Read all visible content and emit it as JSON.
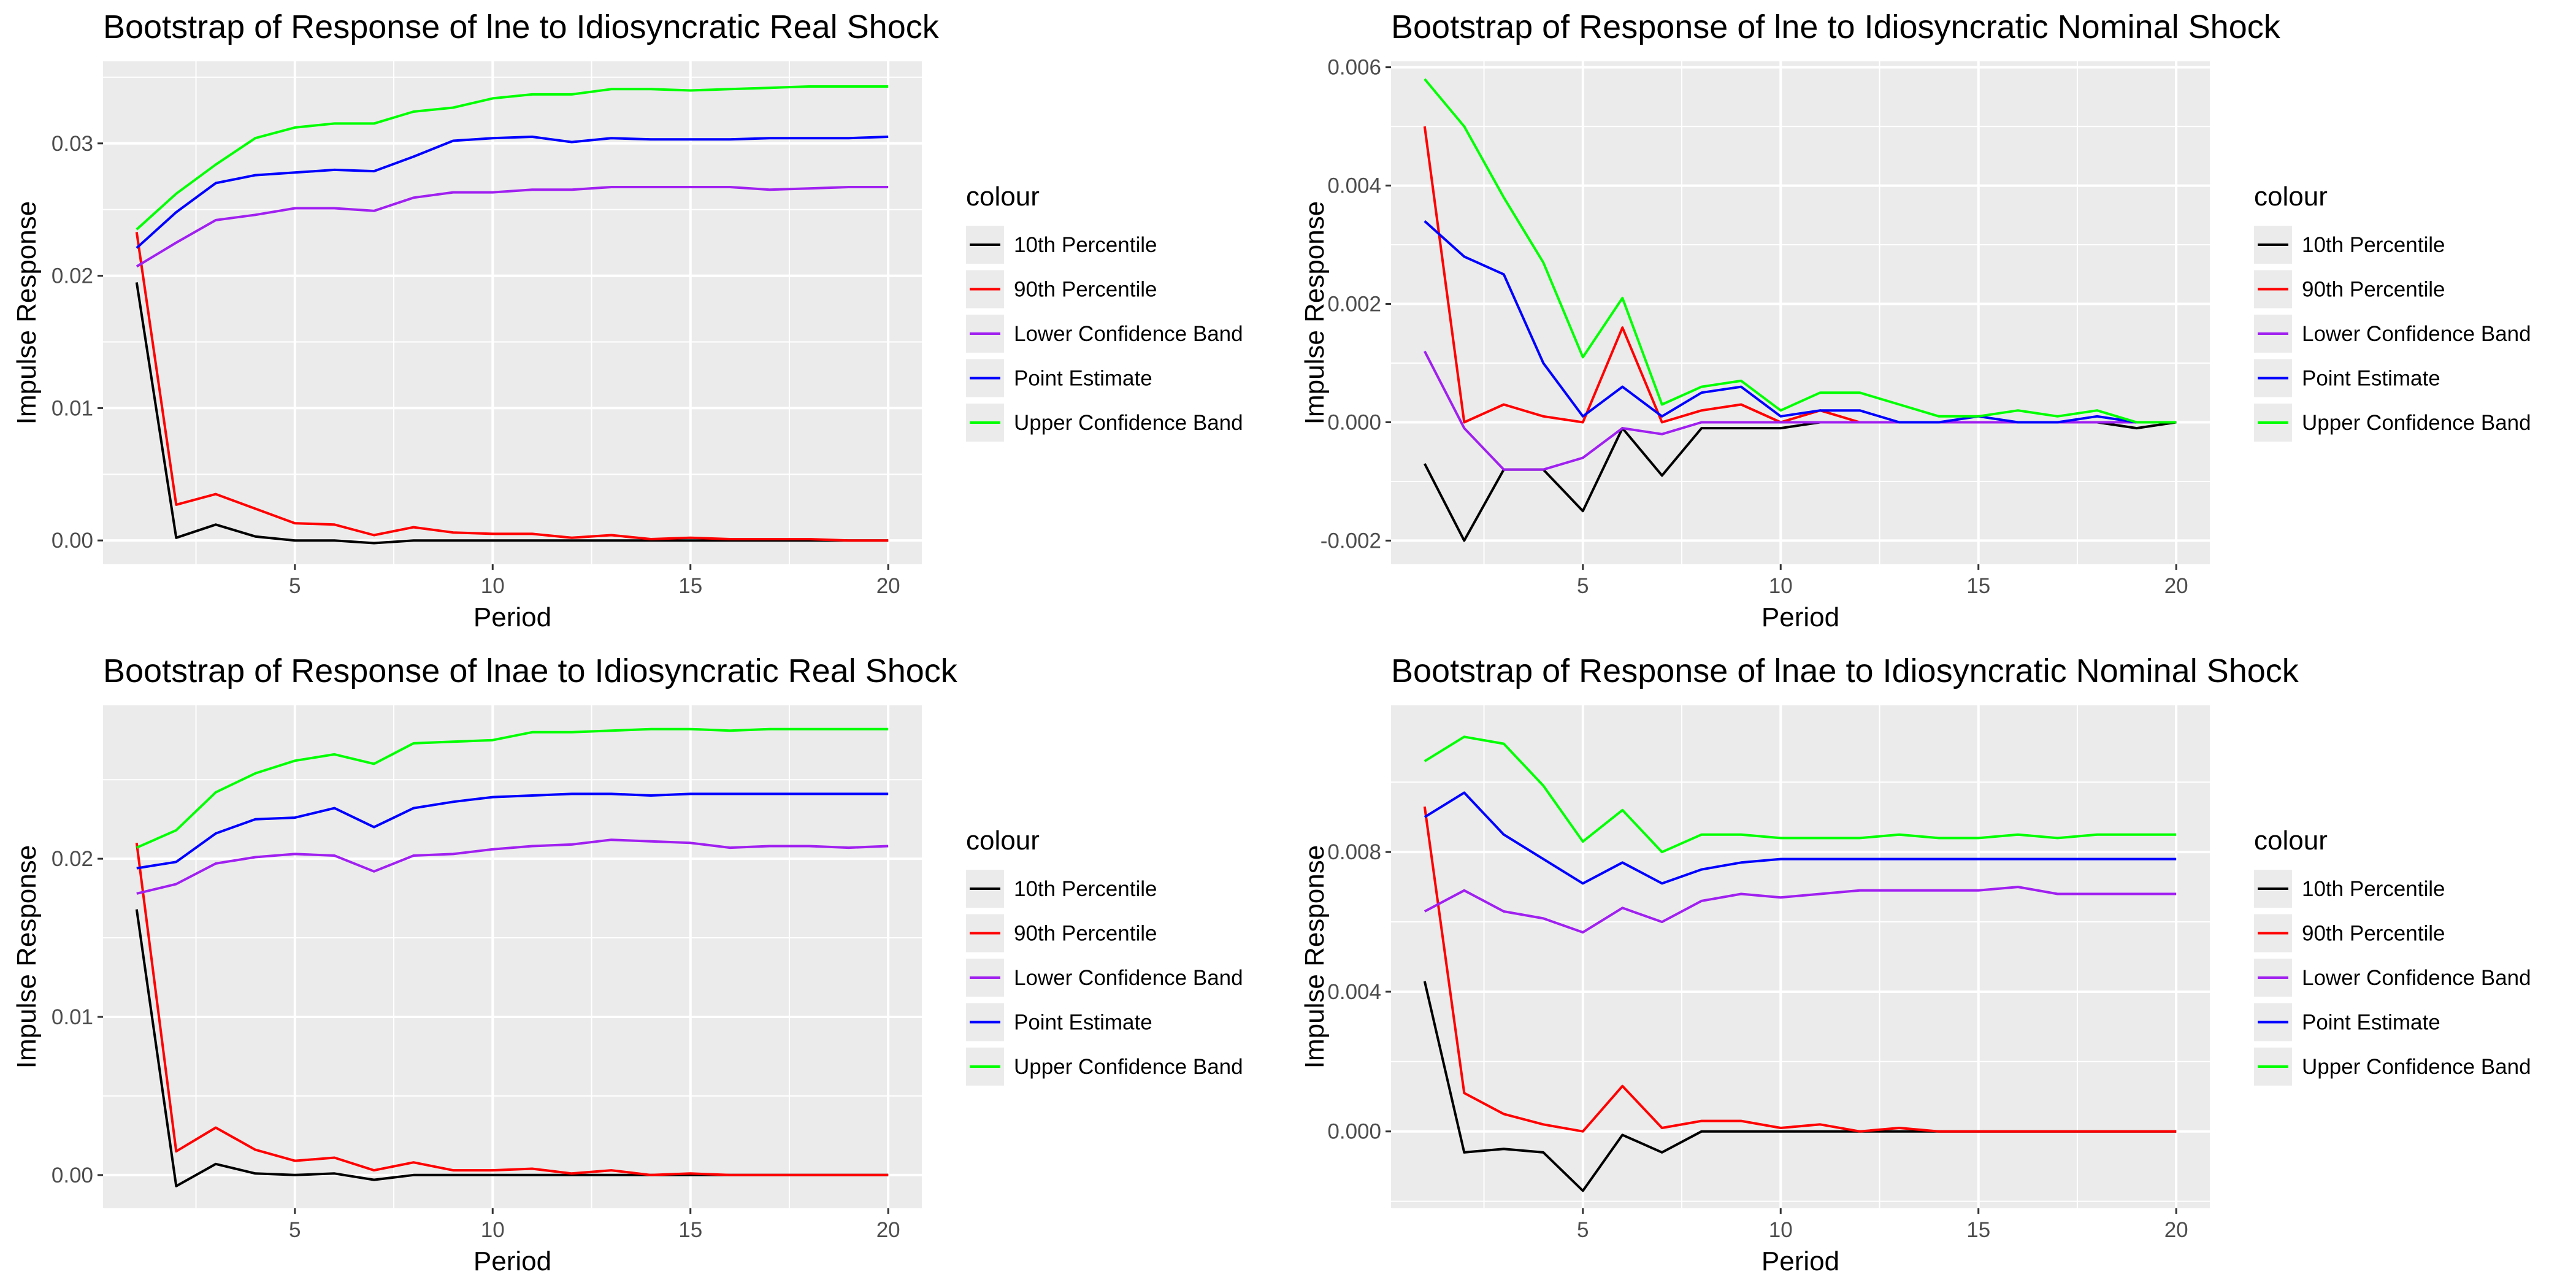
{
  "colors": {
    "10th Percentile": "#000000",
    "90th Percentile": "#ff0000",
    "Lower Confidence Band": "#a020f0",
    "Point Estimate": "#0000ff",
    "Upper Confidence Band": "#00ff00"
  },
  "chart_data": [
    {
      "type": "line",
      "title": "Bootstrap of Response of lne to Idiosyncratic Real Shock",
      "xlabel": "Period",
      "ylabel": "Impulse Response",
      "x": [
        1,
        2,
        3,
        4,
        5,
        6,
        7,
        8,
        9,
        10,
        11,
        12,
        13,
        14,
        15,
        16,
        17,
        18,
        19,
        20
      ],
      "xlim": [
        0.15,
        20.85
      ],
      "ylim": [
        -0.0018,
        0.0362
      ],
      "xticks": [
        5,
        10,
        15,
        20
      ],
      "yticks": [
        0.0,
        0.01,
        0.02,
        0.03
      ],
      "ytick_labels": [
        "0.00",
        "0.01",
        "0.02",
        "0.03"
      ],
      "grid": true,
      "legend": {
        "title": "colour",
        "position": "right"
      },
      "series": [
        {
          "name": "10th Percentile",
          "values": [
            0.0195,
            0.0002,
            0.0012,
            0.0003,
            0.0,
            0.0,
            -0.0002,
            0.0,
            0.0,
            0.0,
            0.0,
            0.0,
            0.0,
            0.0,
            0.0,
            0.0,
            0.0,
            0.0,
            0.0,
            0.0
          ]
        },
        {
          "name": "90th Percentile",
          "values": [
            0.0233,
            0.0027,
            0.0035,
            0.0024,
            0.0013,
            0.0012,
            0.0004,
            0.001,
            0.0006,
            0.0005,
            0.0005,
            0.0002,
            0.0004,
            0.0001,
            0.0002,
            0.0001,
            0.0001,
            0.0001,
            0.0,
            0.0
          ]
        },
        {
          "name": "Lower Confidence Band",
          "values": [
            0.0207,
            0.0225,
            0.0242,
            0.0246,
            0.0251,
            0.0251,
            0.0249,
            0.0259,
            0.0263,
            0.0263,
            0.0265,
            0.0265,
            0.0267,
            0.0267,
            0.0267,
            0.0267,
            0.0265,
            0.0266,
            0.0267,
            0.0267
          ]
        },
        {
          "name": "Point Estimate",
          "values": [
            0.0221,
            0.0248,
            0.027,
            0.0276,
            0.0278,
            0.028,
            0.0279,
            0.029,
            0.0302,
            0.0304,
            0.0305,
            0.0301,
            0.0304,
            0.0303,
            0.0303,
            0.0303,
            0.0304,
            0.0304,
            0.0304,
            0.0305
          ]
        },
        {
          "name": "Upper Confidence Band",
          "values": [
            0.0235,
            0.0262,
            0.0284,
            0.0304,
            0.0312,
            0.0315,
            0.0315,
            0.0324,
            0.0327,
            0.0334,
            0.0337,
            0.0337,
            0.0341,
            0.0341,
            0.034,
            0.0341,
            0.0342,
            0.0343,
            0.0343,
            0.0343
          ]
        }
      ]
    },
    {
      "type": "line",
      "title": "Bootstrap of Response of lne to Idiosyncratic Nominal Shock",
      "xlabel": "Period",
      "ylabel": "Impulse Response",
      "x": [
        1,
        2,
        3,
        4,
        5,
        6,
        7,
        8,
        9,
        10,
        11,
        12,
        13,
        14,
        15,
        16,
        17,
        18,
        19,
        20
      ],
      "xlim": [
        0.15,
        20.85
      ],
      "ylim": [
        -0.0024,
        0.0061
      ],
      "xticks": [
        5,
        10,
        15,
        20
      ],
      "yticks": [
        -0.002,
        0.0,
        0.002,
        0.004,
        0.006
      ],
      "ytick_labels": [
        "-0.002",
        "0.000",
        "0.002",
        "0.004",
        "0.006"
      ],
      "grid": true,
      "legend": {
        "title": "colour",
        "position": "right"
      },
      "series": [
        {
          "name": "10th Percentile",
          "values": [
            -0.0007,
            -0.002,
            -0.0008,
            -0.0008,
            -0.0015,
            -0.0001,
            -0.0009,
            -0.0001,
            -0.0001,
            -0.0001,
            0.0,
            0.0,
            0.0,
            0.0,
            0.0,
            0.0,
            0.0,
            0.0,
            -0.0001,
            0.0
          ]
        },
        {
          "name": "90th Percentile",
          "values": [
            0.005,
            0.0,
            0.0003,
            0.0001,
            0.0,
            0.0016,
            0.0,
            0.0002,
            0.0003,
            0.0,
            0.0002,
            0.0,
            0.0,
            0.0,
            0.0,
            0.0,
            0.0,
            0.0,
            0.0,
            0.0
          ]
        },
        {
          "name": "Lower Confidence Band",
          "values": [
            0.0012,
            -0.0001,
            -0.0008,
            -0.0008,
            -0.0006,
            -0.0001,
            -0.0002,
            0.0,
            0.0,
            0.0,
            0.0,
            0.0,
            0.0,
            0.0,
            0.0,
            0.0,
            0.0,
            0.0,
            0.0,
            0.0
          ]
        },
        {
          "name": "Point Estimate",
          "values": [
            0.0034,
            0.0028,
            0.0025,
            0.001,
            0.0001,
            0.0006,
            0.0001,
            0.0005,
            0.0006,
            0.0001,
            0.0002,
            0.0002,
            0.0,
            0.0,
            0.0001,
            0.0,
            0.0,
            0.0001,
            0.0,
            0.0
          ]
        },
        {
          "name": "Upper Confidence Band",
          "values": [
            0.0058,
            0.005,
            0.0038,
            0.0027,
            0.0011,
            0.0021,
            0.0003,
            0.0006,
            0.0007,
            0.0002,
            0.0005,
            0.0005,
            0.0003,
            0.0001,
            0.0001,
            0.0002,
            0.0001,
            0.0002,
            0.0,
            0.0
          ]
        }
      ]
    },
    {
      "type": "line",
      "title": "Bootstrap of Response of lnae to Idiosyncratic Real Shock",
      "xlabel": "Period",
      "ylabel": "Impulse Response",
      "x": [
        1,
        2,
        3,
        4,
        5,
        6,
        7,
        8,
        9,
        10,
        11,
        12,
        13,
        14,
        15,
        16,
        17,
        18,
        19,
        20
      ],
      "xlim": [
        0.15,
        20.85
      ],
      "ylim": [
        -0.0021,
        0.0297
      ],
      "xticks": [
        5,
        10,
        15,
        20
      ],
      "yticks": [
        0.0,
        0.01,
        0.02
      ],
      "ytick_labels": [
        "0.00",
        "0.01",
        "0.02"
      ],
      "grid": true,
      "legend": {
        "title": "colour",
        "position": "right"
      },
      "series": [
        {
          "name": "10th Percentile",
          "values": [
            0.0168,
            -0.0007,
            0.0007,
            0.0001,
            0.0,
            0.0001,
            -0.0003,
            0.0,
            0.0,
            0.0,
            0.0,
            0.0,
            0.0,
            0.0,
            0.0,
            0.0,
            0.0,
            0.0,
            0.0,
            0.0
          ]
        },
        {
          "name": "90th Percentile",
          "values": [
            0.021,
            0.0015,
            0.003,
            0.0016,
            0.0009,
            0.0011,
            0.0003,
            0.0008,
            0.0003,
            0.0003,
            0.0004,
            0.0001,
            0.0003,
            0.0,
            0.0001,
            0.0,
            0.0,
            0.0,
            0.0,
            0.0
          ]
        },
        {
          "name": "Lower Confidence Band",
          "values": [
            0.0178,
            0.0184,
            0.0197,
            0.0201,
            0.0203,
            0.0202,
            0.0192,
            0.0202,
            0.0203,
            0.0206,
            0.0208,
            0.0209,
            0.0212,
            0.0211,
            0.021,
            0.0207,
            0.0208,
            0.0208,
            0.0207,
            0.0208
          ]
        },
        {
          "name": "Point Estimate",
          "values": [
            0.0194,
            0.0198,
            0.0216,
            0.0225,
            0.0226,
            0.0232,
            0.022,
            0.0232,
            0.0236,
            0.0239,
            0.024,
            0.0241,
            0.0241,
            0.024,
            0.0241,
            0.0241,
            0.0241,
            0.0241,
            0.0241,
            0.0241
          ]
        },
        {
          "name": "Upper Confidence Band",
          "values": [
            0.0207,
            0.0218,
            0.0242,
            0.0254,
            0.0262,
            0.0266,
            0.026,
            0.0273,
            0.0274,
            0.0275,
            0.028,
            0.028,
            0.0281,
            0.0282,
            0.0282,
            0.0281,
            0.0282,
            0.0282,
            0.0282,
            0.0282
          ]
        }
      ]
    },
    {
      "type": "line",
      "title": "Bootstrap of Response of lnae to Idiosyncratic Nominal Shock",
      "xlabel": "Period",
      "ylabel": "Impulse Response",
      "x": [
        1,
        2,
        3,
        4,
        5,
        6,
        7,
        8,
        9,
        10,
        11,
        12,
        13,
        14,
        15,
        16,
        17,
        18,
        19,
        20
      ],
      "xlim": [
        0.15,
        20.85
      ],
      "ylim": [
        -0.0022,
        0.0122
      ],
      "xticks": [
        5,
        10,
        15,
        20
      ],
      "yticks": [
        0.0,
        0.004,
        0.008
      ],
      "ytick_labels": [
        "0.000",
        "0.004",
        "0.008"
      ],
      "grid": true,
      "legend": {
        "title": "colour",
        "position": "right"
      },
      "series": [
        {
          "name": "10th Percentile",
          "values": [
            0.0043,
            -0.0006,
            -0.0005,
            -0.0006,
            -0.0017,
            -0.0001,
            -0.0006,
            0.0,
            0.0,
            0.0,
            0.0,
            0.0,
            0.0,
            0.0,
            0.0,
            0.0,
            0.0,
            0.0,
            0.0,
            0.0
          ]
        },
        {
          "name": "90th Percentile",
          "values": [
            0.0093,
            0.0011,
            0.0005,
            0.0002,
            0.0,
            0.0013,
            0.0001,
            0.0003,
            0.0003,
            0.0001,
            0.0002,
            0.0,
            0.0001,
            0.0,
            0.0,
            0.0,
            0.0,
            0.0,
            0.0,
            0.0
          ]
        },
        {
          "name": "Lower Confidence Band",
          "values": [
            0.0063,
            0.0069,
            0.0063,
            0.0061,
            0.0057,
            0.0064,
            0.006,
            0.0066,
            0.0068,
            0.0067,
            0.0068,
            0.0069,
            0.0069,
            0.0069,
            0.0069,
            0.007,
            0.0068,
            0.0068,
            0.0068,
            0.0068
          ]
        },
        {
          "name": "Point Estimate",
          "values": [
            0.009,
            0.0097,
            0.0085,
            0.0078,
            0.0071,
            0.0077,
            0.0071,
            0.0075,
            0.0077,
            0.0078,
            0.0078,
            0.0078,
            0.0078,
            0.0078,
            0.0078,
            0.0078,
            0.0078,
            0.0078,
            0.0078,
            0.0078
          ]
        },
        {
          "name": "Upper Confidence Band",
          "values": [
            0.0106,
            0.0113,
            0.0111,
            0.0099,
            0.0083,
            0.0092,
            0.008,
            0.0085,
            0.0085,
            0.0084,
            0.0084,
            0.0084,
            0.0085,
            0.0084,
            0.0084,
            0.0085,
            0.0084,
            0.0085,
            0.0085,
            0.0085
          ]
        }
      ]
    }
  ]
}
